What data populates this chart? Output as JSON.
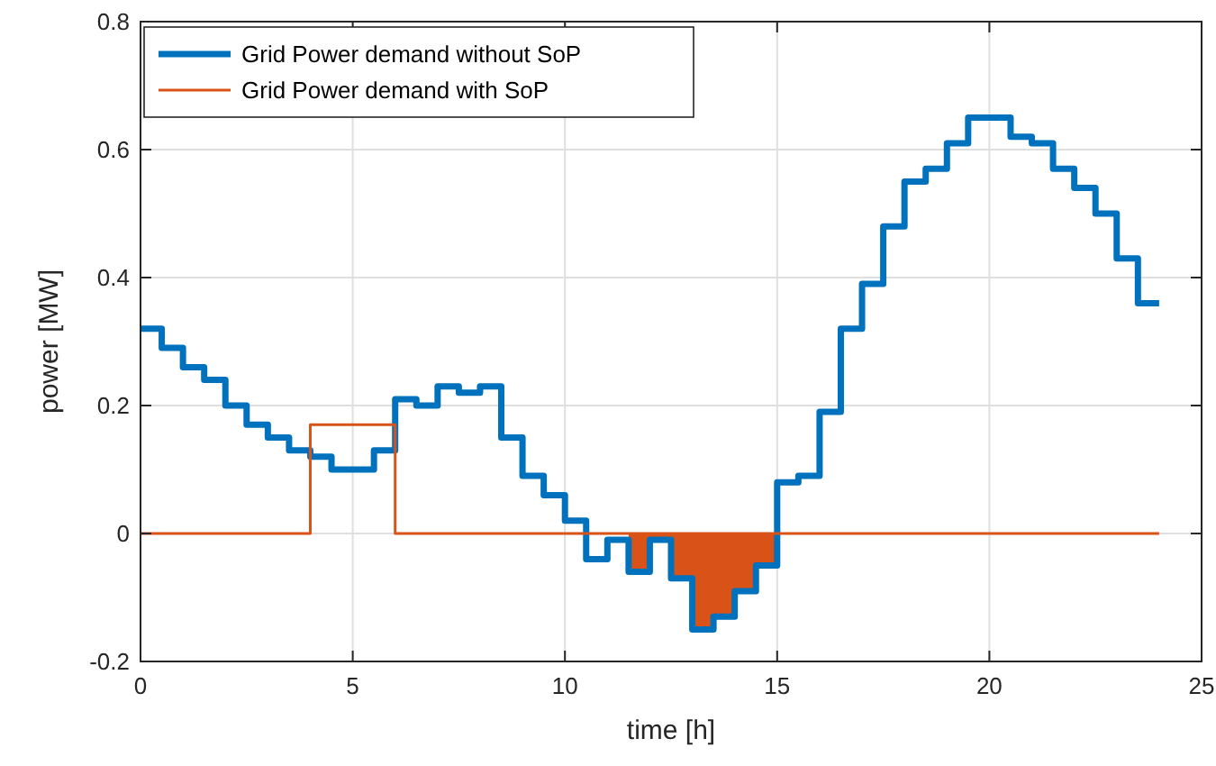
{
  "chart_data": {
    "type": "step",
    "xlabel": "time [h]",
    "ylabel": "power [MW]",
    "xlim": [
      0,
      25
    ],
    "xticks": [
      0,
      5,
      10,
      15,
      20,
      25
    ],
    "ylim": [
      -0.2,
      0.8
    ],
    "yticks": [
      -0.2,
      0,
      0.2,
      0.4,
      0.6,
      0.8
    ],
    "grid": true,
    "legend": "top left",
    "series": [
      {
        "name": "Grid Power demand without SoP",
        "color": "#0072bd",
        "x": [
          0,
          0.5,
          1,
          1.5,
          2,
          2.5,
          3,
          3.5,
          4,
          4.5,
          5,
          5.5,
          6,
          6.5,
          7,
          7.5,
          8,
          8.5,
          9,
          9.5,
          10,
          10.5,
          11,
          11.5,
          12,
          12.5,
          13,
          13.5,
          14,
          14.5,
          15,
          15.5,
          16,
          16.5,
          17,
          17.5,
          18,
          18.5,
          19,
          19.5,
          20,
          20.5,
          21,
          21.5,
          22,
          22.5,
          23,
          23.5,
          24
        ],
        "values": [
          0.32,
          0.29,
          0.26,
          0.24,
          0.2,
          0.17,
          0.15,
          0.13,
          0.12,
          0.1,
          0.1,
          0.13,
          0.21,
          0.2,
          0.23,
          0.22,
          0.23,
          0.15,
          0.09,
          0.06,
          0.02,
          -0.04,
          -0.01,
          -0.06,
          -0.01,
          -0.07,
          -0.15,
          -0.13,
          -0.09,
          -0.05,
          0.08,
          0.09,
          0.19,
          0.32,
          0.39,
          0.48,
          0.55,
          0.57,
          0.61,
          0.65,
          0.65,
          0.62,
          0.61,
          0.57,
          0.54,
          0.5,
          0.43,
          0.36,
          0.36
        ]
      },
      {
        "name": "Grid Power demand with SoP",
        "color": "#d95319",
        "x": [
          0,
          4,
          6,
          24
        ],
        "values": [
          0,
          0.17,
          0,
          0
        ]
      },
      {
        "color": "#d95319",
        "type": "area",
        "x": [
          11.5,
          12,
          12.5,
          13,
          13.5,
          14,
          14.5,
          15
        ],
        "values": [
          -0.06,
          -0.01,
          -0.07,
          -0.15,
          -0.13,
          -0.09,
          -0.05,
          0
        ]
      }
    ]
  }
}
